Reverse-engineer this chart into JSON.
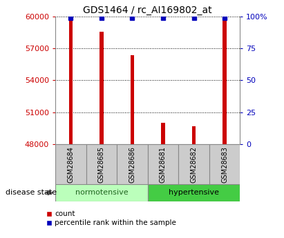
{
  "title": "GDS1464 / rc_AI169802_at",
  "samples": [
    "GSM28684",
    "GSM28685",
    "GSM28686",
    "GSM28681",
    "GSM28682",
    "GSM28683"
  ],
  "counts": [
    59700,
    58600,
    56400,
    50000,
    49700,
    59800
  ],
  "percentile_ranks": [
    99,
    99,
    99,
    99,
    99,
    99
  ],
  "ymin": 48000,
  "ymax": 60000,
  "yticks": [
    48000,
    51000,
    54000,
    57000,
    60000
  ],
  "ytick_labels": [
    "48000",
    "51000",
    "54000",
    "57000",
    "60000"
  ],
  "right_yticks": [
    0,
    25,
    50,
    75,
    100
  ],
  "right_ytick_labels": [
    "0",
    "25",
    "50",
    "75",
    "100%"
  ],
  "bar_color": "#cc0000",
  "dot_color": "#0000bb",
  "normotensive_color": "#bbffbb",
  "hypertensive_color": "#44cc44",
  "group_label_normotensive_color": "#226622",
  "group_label_hypertensive_color": "#000000",
  "tick_color_left": "#cc0000",
  "tick_color_right": "#0000bb",
  "label_fontsize": 8,
  "title_fontsize": 10,
  "disease_state_label": "disease state",
  "normotensive_label": "normotensive",
  "hypertensive_label": "hypertensive",
  "legend_count_label": "count",
  "legend_percentile_label": "percentile rank within the sample",
  "bar_width": 0.12,
  "sample_box_color": "#cccccc",
  "spine_color": "#888888"
}
